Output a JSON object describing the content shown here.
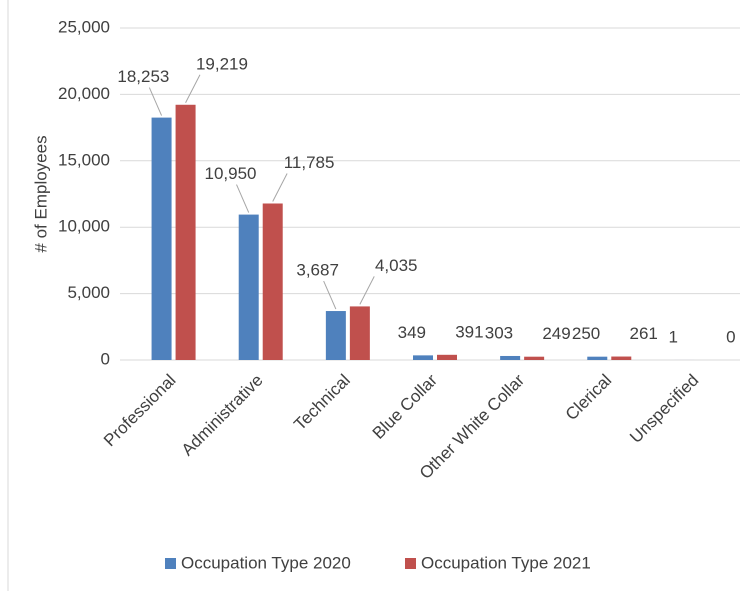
{
  "chart_data": {
    "type": "bar",
    "categories": [
      "Professional",
      "Administrative",
      "Technical",
      "Blue Collar",
      "Other White Collar",
      "Clerical",
      "Unspecified"
    ],
    "series": [
      {
        "name": "Occupation Type 2020",
        "color": "#4f81bd",
        "values": [
          18253,
          10950,
          3687,
          349,
          303,
          250,
          1
        ],
        "value_labels": [
          "18,253",
          "10,950",
          "3,687",
          "349",
          "303",
          "250",
          "1"
        ]
      },
      {
        "name": "Occupation Type 2021",
        "color": "#c0504d",
        "values": [
          19219,
          11785,
          4035,
          391,
          249,
          261,
          0
        ],
        "value_labels": [
          "19,219",
          "11,785",
          "4,035",
          "391",
          "249",
          "261",
          "0"
        ]
      }
    ],
    "ylabel": "# of Employees",
    "ylim": [
      0,
      25000
    ],
    "yticks": [
      0,
      {
        "value": 5000,
        "label": "5,000"
      },
      {
        "value": 10000,
        "label": "10,000"
      },
      {
        "value": 15000,
        "label": "15,000"
      },
      {
        "value": 20000,
        "label": "20,000"
      },
      {
        "value": 25000,
        "label": "25,000"
      }
    ],
    "grid": true,
    "legend": "bottom"
  }
}
